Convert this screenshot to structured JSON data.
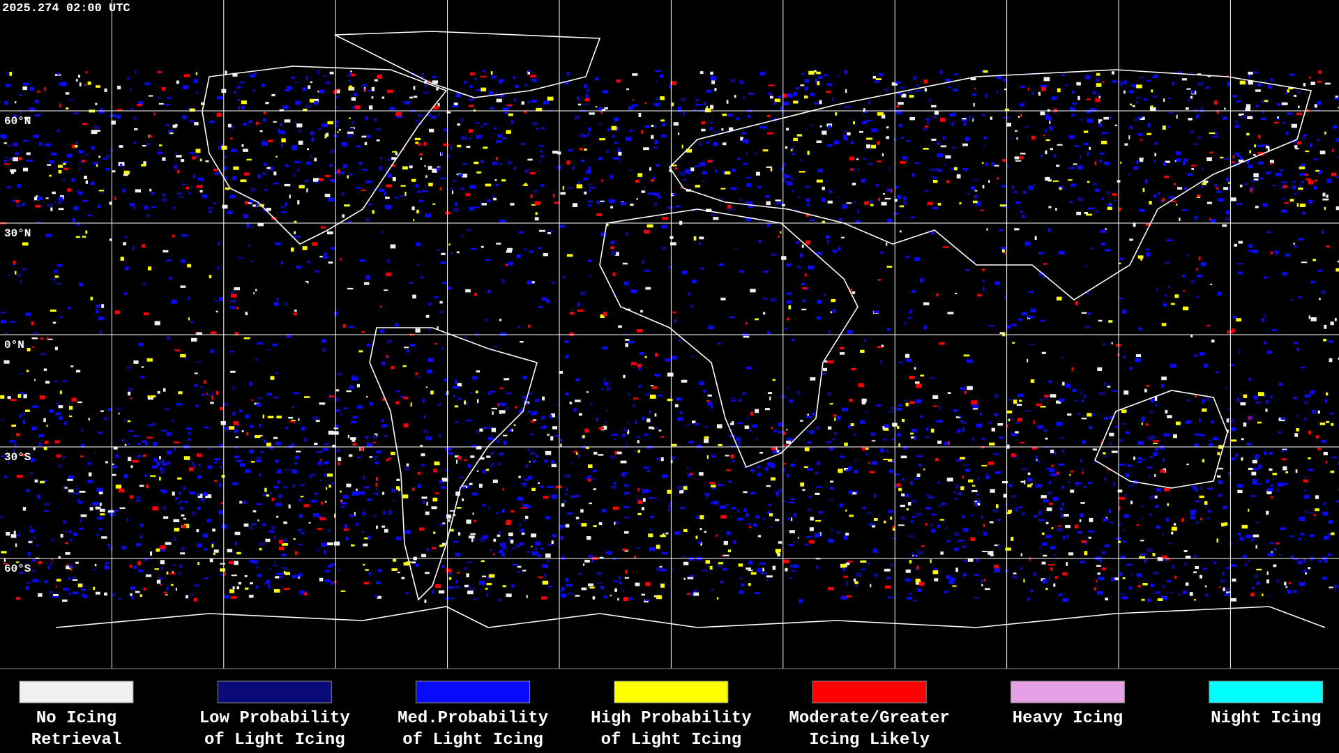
{
  "header": {
    "timestamp": "2025.274 02:00 UTC"
  },
  "map": {
    "latitude_labels": [
      "60°N",
      "30°N",
      "0°N",
      "30°S",
      "60°S"
    ]
  },
  "legend": {
    "items": [
      {
        "label": [
          "No Icing",
          "Retrieval"
        ],
        "color": "#f0f0f0"
      },
      {
        "label": [
          "Low Probability",
          "of Light Icing"
        ],
        "color": "#0a0a78"
      },
      {
        "label": [
          "Med.Probability",
          "of Light Icing"
        ],
        "color": "#0a0aff"
      },
      {
        "label": [
          "High Probability",
          "of Light Icing"
        ],
        "color": "#ffff00"
      },
      {
        "label": [
          "Moderate/Greater",
          "Icing Likely"
        ],
        "color": "#ff0000"
      },
      {
        "label": [
          "Heavy Icing"
        ],
        "color": "#e6a0e6"
      },
      {
        "label": [
          "Night Icing"
        ],
        "color": "#00ffff"
      }
    ]
  }
}
